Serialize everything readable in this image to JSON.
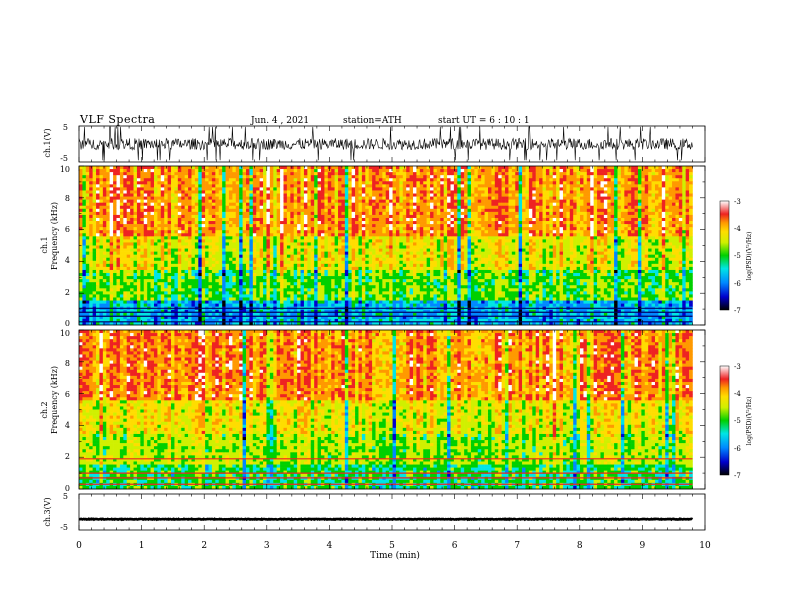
{
  "header": {
    "title": "VLF  Spectra",
    "date": "Jun. 4  , 2021",
    "station": "station=ATH",
    "start": "start  UT  =   6  : 10 : 1"
  },
  "chart_data": [
    {
      "type": "line",
      "name": "ch1-waveform",
      "ylabel": "ch.1(V)",
      "ylim": [
        -5,
        5
      ],
      "yticks": [
        "5",
        "-5"
      ],
      "xlim": [
        0,
        10
      ],
      "description_values": {
        "mean": 0,
        "amplitude_range": [
          -2,
          2
        ]
      }
    },
    {
      "type": "heatmap",
      "name": "ch1-spectrogram",
      "ylabel_top": "ch.1",
      "ylabel": "Frequency  (kHz)",
      "ylim": [
        0,
        10
      ],
      "yticks": [
        "0",
        "2",
        "4",
        "6",
        "8",
        "10"
      ],
      "xlim": [
        0,
        9.8
      ],
      "colorbar": {
        "label": "log(PSD)(V²/Hz)",
        "range": [
          -7,
          -3
        ],
        "ticks": [
          "-3",
          "-4",
          "-5",
          "-6",
          "-7"
        ]
      },
      "bands": [
        {
          "from": 0,
          "to": 1.5,
          "level": -5.8
        },
        {
          "from": 1.5,
          "to": 3.5,
          "level": -5.1
        },
        {
          "from": 3.5,
          "to": 5.5,
          "level": -4.6
        },
        {
          "from": 5.5,
          "to": 10,
          "level": -4.0
        }
      ]
    },
    {
      "type": "heatmap",
      "name": "ch2-spectrogram",
      "ylabel_top": "ch.2",
      "ylabel": "Frequency  (kHz)",
      "ylim": [
        0,
        10
      ],
      "yticks": [
        "0",
        "2",
        "4",
        "6",
        "8",
        "10"
      ],
      "xlim": [
        0,
        9.8
      ],
      "colorbar": {
        "label": "log(PSD)(V²/Hz)",
        "range": [
          -7,
          -3
        ],
        "ticks": [
          "-3",
          "-4",
          "-5",
          "-6",
          "-7"
        ]
      },
      "bands": [
        {
          "from": 0,
          "to": 1.5,
          "level": -5.3
        },
        {
          "from": 1.5,
          "to": 3.5,
          "level": -4.9
        },
        {
          "from": 3.5,
          "to": 5.5,
          "level": -4.6
        },
        {
          "from": 5.5,
          "to": 10,
          "level": -4.0
        }
      ]
    },
    {
      "type": "line",
      "name": "ch3-waveform",
      "ylabel": "ch.3(V)",
      "ylim": [
        -5,
        5
      ],
      "yticks": [
        "5",
        "-5"
      ],
      "xlim": [
        0,
        9.8
      ],
      "description_values": {
        "mean": -2,
        "amplitude_range": [
          -2.2,
          -1.8
        ]
      }
    }
  ],
  "xaxis": {
    "label": "Time  (min)",
    "ticks": [
      "0",
      "1",
      "2",
      "3",
      "4",
      "5",
      "6",
      "7",
      "8",
      "9",
      "10"
    ],
    "range": [
      0,
      10
    ]
  },
  "colors": {
    "colormap": [
      "#000000",
      "#0000cc",
      "#0088ff",
      "#00e5e5",
      "#00d000",
      "#d0f000",
      "#ffdd00",
      "#ff9900",
      "#ee2222",
      "#ffffff"
    ]
  }
}
